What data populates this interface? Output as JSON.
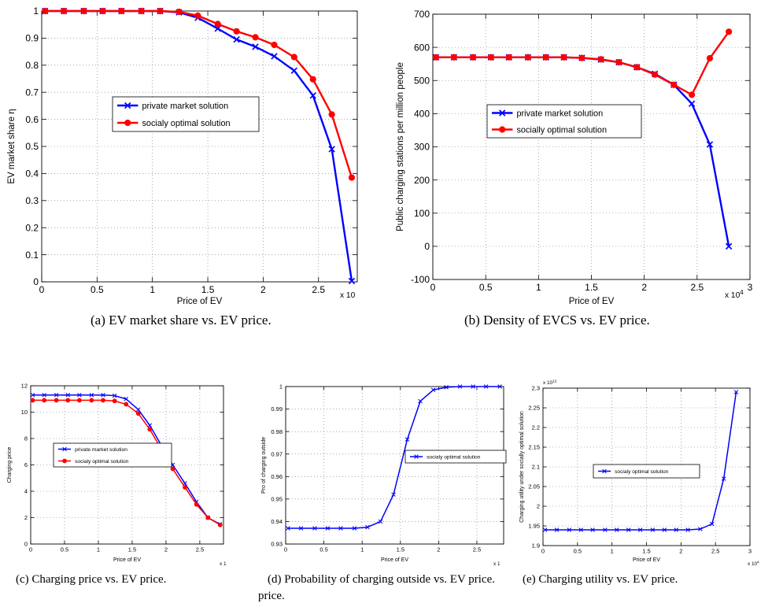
{
  "chart_data": [
    {
      "id": "a",
      "type": "line",
      "caption": "(a)  EV market share vs. EV price.",
      "xlabel": "Price of EV",
      "ylabel": "EV market share η",
      "x_scale_note": "x 10",
      "xlim": [
        0,
        2.85
      ],
      "ylim": [
        0,
        1
      ],
      "xticks": [
        0,
        0.5,
        1,
        1.5,
        2,
        2.5
      ],
      "yticks": [
        0,
        0.1,
        0.2,
        0.3,
        0.4,
        0.5,
        0.6,
        0.7,
        0.8,
        0.9,
        1
      ],
      "grid": true,
      "legend": {
        "position": "center-left",
        "entries": [
          "private market solution",
          "socialy optimal solution"
        ]
      },
      "x": [
        0.03,
        0.2,
        0.38,
        0.55,
        0.72,
        0.9,
        1.07,
        1.24,
        1.41,
        1.59,
        1.76,
        1.93,
        2.1,
        2.28,
        2.45,
        2.62,
        2.8
      ],
      "series": [
        {
          "name": "private market solution",
          "color": "#0000ff",
          "marker": "x",
          "values": [
            1,
            1,
            1,
            1,
            1,
            1,
            1,
            0.995,
            0.975,
            0.935,
            0.895,
            0.868,
            0.833,
            0.78,
            0.688,
            0.49,
            0.003
          ]
        },
        {
          "name": "socialy optimal solution",
          "color": "#ff0000",
          "marker": "o",
          "values": [
            1,
            1,
            1,
            1,
            1,
            1,
            1,
            0.997,
            0.983,
            0.952,
            0.925,
            0.903,
            0.875,
            0.83,
            0.748,
            0.618,
            0.385
          ]
        }
      ]
    },
    {
      "id": "b",
      "type": "line",
      "caption": "(b)  Density of EVCS vs. EV price.",
      "xlabel": "Price of EV",
      "ylabel": "Public charging stations per million people",
      "x_scale_note": "x 10",
      "x_scale_exp": "4",
      "xlim": [
        0,
        3
      ],
      "ylim": [
        -100,
        700
      ],
      "xticks": [
        0,
        0.5,
        1,
        1.5,
        2,
        2.5,
        3
      ],
      "yticks": [
        -100,
        0,
        100,
        200,
        300,
        400,
        500,
        600,
        700
      ],
      "grid": true,
      "legend": {
        "position": "center-left",
        "entries": [
          "private market solution",
          "socially optimal solution"
        ]
      },
      "x": [
        0.03,
        0.2,
        0.38,
        0.55,
        0.72,
        0.9,
        1.07,
        1.24,
        1.41,
        1.59,
        1.76,
        1.93,
        2.1,
        2.28,
        2.45,
        2.62,
        2.8
      ],
      "series": [
        {
          "name": "private market solution",
          "color": "#0000ff",
          "marker": "x",
          "values": [
            570,
            570,
            570,
            570,
            570,
            570,
            570,
            570,
            568,
            563,
            555,
            540,
            520,
            487,
            430,
            307,
            0
          ]
        },
        {
          "name": "socially optimal solution",
          "color": "#ff0000",
          "marker": "o",
          "values": [
            570,
            570,
            570,
            570,
            570,
            570,
            570,
            570,
            568,
            564,
            555,
            540,
            518,
            487,
            457,
            567,
            647
          ]
        }
      ]
    },
    {
      "id": "c",
      "type": "line",
      "caption": "(c)  Charging price vs. EV price.",
      "xlabel": "Price of EV",
      "ylabel": "Charging price",
      "x_scale_note": "x 1",
      "xlim": [
        0,
        2.85
      ],
      "ylim": [
        0,
        12
      ],
      "xticks": [
        0,
        0.5,
        1,
        1.5,
        2,
        2.5
      ],
      "yticks": [
        0,
        2,
        4,
        6,
        8,
        10,
        12
      ],
      "grid": true,
      "legend": {
        "position": "center",
        "entries": [
          "private market solution",
          "socialy optimal solution"
        ]
      },
      "x": [
        0.03,
        0.2,
        0.38,
        0.55,
        0.72,
        0.9,
        1.07,
        1.24,
        1.41,
        1.59,
        1.76,
        1.93,
        2.1,
        2.28,
        2.45,
        2.62,
        2.8
      ],
      "series": [
        {
          "name": "private market solution",
          "color": "#0000ff",
          "marker": "x",
          "values": [
            11.3,
            11.3,
            11.3,
            11.3,
            11.3,
            11.3,
            11.3,
            11.25,
            11.0,
            10.2,
            9.0,
            7.5,
            6.0,
            4.6,
            3.2,
            2.0,
            1.5
          ]
        },
        {
          "name": "socialy optimal solution",
          "color": "#ff0000",
          "marker": "o",
          "values": [
            10.9,
            10.9,
            10.9,
            10.9,
            10.9,
            10.9,
            10.9,
            10.85,
            10.6,
            9.9,
            8.7,
            7.2,
            5.7,
            4.3,
            3.0,
            2.0,
            1.45
          ]
        }
      ]
    },
    {
      "id": "d",
      "type": "line",
      "caption": "(d)  Probability of charging outside vs. EV price.",
      "xlabel": "Price of EV",
      "ylabel": "Pro of charging outside",
      "x_scale_note": "x 1",
      "xlim": [
        0,
        2.85
      ],
      "ylim": [
        0.93,
        1
      ],
      "xticks": [
        0,
        0.5,
        1,
        1.5,
        2,
        2.5
      ],
      "yticks": [
        0.93,
        0.94,
        0.95,
        0.96,
        0.97,
        0.98,
        0.99,
        1
      ],
      "grid": true,
      "legend": {
        "position": "center-right",
        "entries": [
          "socialy optimal solution"
        ]
      },
      "x": [
        0.03,
        0.2,
        0.38,
        0.55,
        0.72,
        0.9,
        1.07,
        1.24,
        1.41,
        1.59,
        1.76,
        1.93,
        2.1,
        2.28,
        2.45,
        2.62,
        2.8
      ],
      "series": [
        {
          "name": "socialy optimal solution",
          "color": "#0000ff",
          "marker": "x",
          "values": [
            0.937,
            0.937,
            0.937,
            0.937,
            0.937,
            0.937,
            0.9375,
            0.94,
            0.952,
            0.9765,
            0.9935,
            0.9985,
            0.9997,
            1.0,
            1.0,
            1.0,
            1.0
          ]
        }
      ]
    },
    {
      "id": "e",
      "type": "line",
      "caption": "(e)  Charging utility vs. EV price.",
      "xlabel": "Price of EV",
      "ylabel": "Charging utility under socially optimal solution",
      "x_scale_note": "x 10",
      "x_scale_exp": "4",
      "y_scale_note": "x 10",
      "y_scale_exp": "12",
      "xlim": [
        0,
        3
      ],
      "ylim": [
        1.9,
        2.3
      ],
      "xticks": [
        0,
        0.5,
        1,
        1.5,
        2,
        2.5,
        3
      ],
      "yticks": [
        1.9,
        1.95,
        2,
        2.05,
        2.1,
        2.15,
        2.2,
        2.25,
        2.3
      ],
      "grid": true,
      "legend": {
        "position": "center",
        "entries": [
          "socialy optimal solution"
        ]
      },
      "x": [
        0.03,
        0.2,
        0.38,
        0.55,
        0.72,
        0.9,
        1.07,
        1.24,
        1.41,
        1.59,
        1.76,
        1.93,
        2.1,
        2.28,
        2.45,
        2.62,
        2.8
      ],
      "series": [
        {
          "name": "socialy optimal solution",
          "color": "#0000ff",
          "marker": "x",
          "values": [
            1.94,
            1.94,
            1.94,
            1.94,
            1.94,
            1.94,
            1.94,
            1.94,
            1.94,
            1.94,
            1.94,
            1.94,
            1.94,
            1.942,
            1.955,
            2.07,
            2.29
          ]
        }
      ]
    }
  ],
  "captions_extra": {
    "d_wrap": "price."
  }
}
